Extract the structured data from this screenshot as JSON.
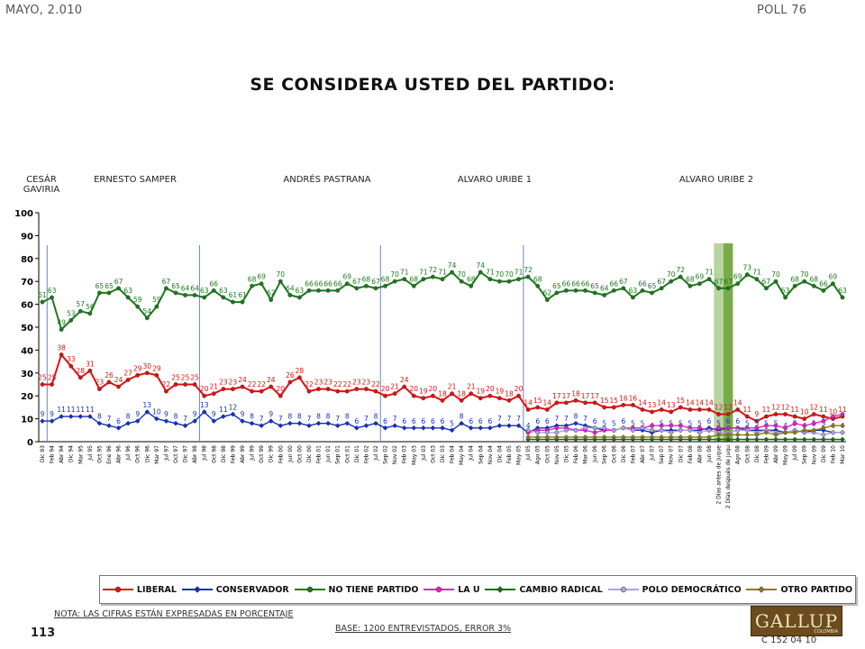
{
  "header": {
    "date": "MAYO, 2.010",
    "poll": "POLL 76"
  },
  "title": "SE CONSIDERA USTED DEL PARTIDO:",
  "eras": [
    {
      "label": "CESÁR GAVIRIA"
    },
    {
      "label": "ERNESTO SAMPER"
    },
    {
      "label": "ANDRÉS PASTRANA"
    },
    {
      "label": "ALVARO URIBE 1"
    },
    {
      "label": "ALVARO URIBE 2"
    }
  ],
  "footer": {
    "note": "NOTA: LAS CIFRAS ESTÁN EXPRESADAS EN PORCENTAJE",
    "base": "BASE: 1200 ENTREVISTADOS, ERROR 3%",
    "page": "113",
    "code": "C 152 04 10",
    "logo": "GALLUP",
    "logo_sub": "COLOMBIA"
  },
  "colors": {
    "liberal": "#e01010",
    "conservador": "#1030c0",
    "no_tiene": "#1a7a1a",
    "la_u": "#e020c8",
    "cambio": "#107010",
    "polo": "#b0a0e0",
    "otro": "#8a7a10",
    "highlight_light": "#b8d4a0",
    "highlight_dark": "#7aab4a"
  },
  "chart_data": {
    "type": "line",
    "title": "SE CONSIDERA USTED DEL PARTIDO:",
    "ylim": [
      0,
      100
    ],
    "yticks": [
      0,
      10,
      20,
      30,
      40,
      50,
      60,
      70,
      80,
      90,
      100
    ],
    "grid": false,
    "legend_position": "bottom",
    "categories": [
      "Dic 93",
      "Feb 94",
      "Abr 94",
      "Dic 94",
      "Mar 95",
      "Jul 95",
      "Oct 95",
      "Ene 96",
      "Abr 96",
      "Jul 96",
      "Oct 96",
      "Dic 96",
      "Mar 97",
      "Jul 97",
      "Oct 97",
      "Dic 97",
      "Abr 98",
      "Jul 98",
      "Oct 98",
      "Dic 98",
      "Feb 99",
      "Abr 99",
      "Jul 99",
      "Oct 99",
      "Dic 99",
      "Feb 00",
      "Jun 00",
      "Oct 00",
      "Dic 00",
      "Feb 01",
      "Jun 01",
      "Sep 01",
      "Oct 01",
      "Dic 01",
      "Feb 02",
      "Jul 02",
      "Sep 02",
      "Nov 02",
      "Feb 03",
      "May 03",
      "Jul 03",
      "Oct 03",
      "Dic 03",
      "Feb 04",
      "May 04",
      "Jul 04",
      "Sep 04",
      "Nov 04",
      "Dic 04",
      "Feb 05",
      "May 05",
      "Jul 05",
      "Ago 05",
      "Oct 05",
      "Nov 05",
      "Dic 05",
      "Feb 06",
      "Mar 06",
      "Jun 06",
      "Sep 06",
      "Oct 06",
      "Dic 06",
      "Feb 07",
      "Abr 07",
      "Jul 07",
      "Sep 07",
      "Nov 07",
      "Dic 07",
      "Feb 08",
      "Abr 08",
      "Jun 08",
      "2 Días antes de Juque Jun 27",
      "2 Días después de Juque Jul 01",
      "Ago 08",
      "Oct 08",
      "Dic 08",
      "Feb 09",
      "Abr 09",
      "May 09",
      "Jul 09",
      "Sep 09",
      "Nov 09",
      "Dic 09",
      "Feb 10",
      "Mar 10"
    ],
    "x_tick_labels": [
      "Dic 93",
      "Feb 94",
      "Abr 94",
      "Dic 94",
      "Mar 95",
      "Jul 95",
      "Oct 95",
      "Ene 96",
      "Abr 96",
      "Jul 96",
      "Oct 96",
      "Dic 96",
      "Mar 97",
      "Jul 97",
      "Oct 97",
      "Dic 97",
      "Abr 98",
      "Jul 98",
      "Oct 98",
      "Dic 98",
      "Feb 99",
      "Abr 99",
      "Jul 99",
      "Oct 99",
      "Dic 99",
      "Feb 00",
      "Jun 00",
      "Oct 00",
      "Dic 00",
      "Feb 01",
      "Jun 01",
      "Sep 01",
      "Oct 01",
      "Dic 01",
      "Feb 02",
      "Jul 02",
      "Sep 02",
      "Nov 02",
      "Feb 03",
      "May 03",
      "Jul 03",
      "Oct 03",
      "Dic 03",
      "Feb 04",
      "May 04",
      "Jul 04",
      "Sep 04",
      "Nov 04",
      "Dic 04",
      "Feb 05",
      "May 05",
      "Jul 05",
      "Ago 05",
      "Oct 05",
      "Nov 05",
      "Dic 05",
      "Feb 06",
      "Mar 06",
      "Jun 06",
      "Sep 06",
      "Oct 06",
      "Dic 06",
      "Feb 07",
      "Abr 07",
      "Jul 07",
      "Sep 07",
      "Nov 07",
      "Dic 07",
      "Feb 08",
      "Abr 08",
      "Jun 08",
      "2 Días antes de Juque Jun 27",
      "2 Días después de Juque Jul 01",
      "Ago 08",
      "Oct 08",
      "Dic 08",
      "Feb 09",
      "Abr 09",
      "May 09",
      "Jul 09",
      "Sep 09",
      "Nov 09",
      "Dic 09",
      "Feb 10",
      "Mar 10"
    ],
    "era_boundaries": [
      1,
      17,
      36,
      51
    ],
    "highlight_indices": [
      71,
      72
    ],
    "series": [
      {
        "name": "LIBERAL",
        "key": "liberal",
        "marker": "circle",
        "labeled": true,
        "values": [
          25,
          25,
          38,
          33,
          28,
          31,
          23,
          26,
          24,
          27,
          29,
          30,
          29,
          22,
          25,
          25,
          25,
          20,
          21,
          23,
          23,
          24,
          22,
          22,
          24,
          20,
          26,
          28,
          22,
          23,
          23,
          22,
          22,
          23,
          23,
          22,
          20,
          21,
          24,
          20,
          19,
          20,
          18,
          21,
          18,
          21,
          19,
          20,
          19,
          18,
          20,
          14,
          15,
          14,
          17,
          17,
          18,
          17,
          17,
          15,
          15,
          16,
          16,
          14,
          13,
          14,
          13,
          15,
          14,
          14,
          14,
          12,
          12,
          14,
          11,
          9,
          11,
          12,
          12,
          11,
          10,
          12,
          11,
          10,
          11
        ]
      },
      {
        "name": "CONSERVADOR",
        "key": "conservador",
        "marker": "diamond",
        "labeled": true,
        "values": [
          9,
          9,
          11,
          11,
          11,
          11,
          8,
          7,
          6,
          8,
          9,
          13,
          10,
          9,
          8,
          7,
          9,
          13,
          9,
          11,
          12,
          9,
          8,
          7,
          9,
          7,
          8,
          8,
          7,
          8,
          8,
          7,
          8,
          6,
          7,
          8,
          6,
          7,
          6,
          6,
          6,
          6,
          6,
          5,
          8,
          6,
          6,
          6,
          7,
          7,
          7,
          4,
          6,
          6,
          7,
          7,
          8,
          7,
          6,
          5,
          5,
          6,
          5,
          5,
          4,
          5,
          5,
          5,
          5,
          5,
          6,
          5,
          6,
          6,
          5,
          5,
          5,
          5,
          4,
          5,
          4,
          5,
          5,
          4,
          4
        ]
      },
      {
        "name": "NO TIENE PARTIDO",
        "key": "no_tiene",
        "marker": "circle",
        "labeled": true,
        "values": [
          61,
          63,
          49,
          53,
          57,
          56,
          65,
          65,
          67,
          63,
          59,
          54,
          59,
          67,
          65,
          64,
          64,
          63,
          66,
          63,
          61,
          61,
          68,
          69,
          62,
          70,
          64,
          63,
          66,
          66,
          66,
          66,
          69,
          67,
          68,
          67,
          68,
          70,
          71,
          68,
          71,
          72,
          71,
          74,
          70,
          68,
          74,
          71,
          70,
          70,
          71,
          72,
          68,
          62,
          65,
          66,
          66,
          66,
          65,
          64,
          66,
          67,
          63,
          66,
          65,
          67,
          70,
          72,
          68,
          69,
          71,
          67,
          67,
          69,
          73,
          71,
          67,
          70,
          63,
          68,
          70,
          68,
          66,
          69,
          63
        ]
      },
      {
        "name": "LA U",
        "key": "la_u",
        "marker": "circle",
        "labeled": false,
        "values": [
          null,
          null,
          null,
          null,
          null,
          null,
          null,
          null,
          null,
          null,
          null,
          null,
          null,
          null,
          null,
          null,
          null,
          null,
          null,
          null,
          null,
          null,
          null,
          null,
          null,
          null,
          null,
          null,
          null,
          null,
          null,
          null,
          null,
          null,
          null,
          null,
          null,
          null,
          null,
          null,
          null,
          null,
          null,
          null,
          null,
          null,
          null,
          null,
          null,
          null,
          null,
          4,
          5,
          5,
          6,
          6,
          5,
          5,
          4,
          5,
          5,
          6,
          6,
          6,
          7,
          7,
          7,
          7,
          6,
          6,
          5,
          6,
          6,
          6,
          6,
          6,
          7,
          7,
          6,
          8,
          7,
          8,
          9,
          11,
          12
        ]
      },
      {
        "name": "CAMBIO RADICAL",
        "key": "cambio",
        "marker": "diamond",
        "labeled": false,
        "values": [
          null,
          null,
          null,
          null,
          null,
          null,
          null,
          null,
          null,
          null,
          null,
          null,
          null,
          null,
          null,
          null,
          null,
          null,
          null,
          null,
          null,
          null,
          null,
          null,
          null,
          null,
          null,
          null,
          null,
          null,
          null,
          null,
          null,
          null,
          null,
          null,
          null,
          null,
          null,
          null,
          null,
          null,
          null,
          null,
          null,
          null,
          null,
          null,
          null,
          null,
          null,
          1,
          1,
          1,
          1,
          1,
          1,
          1,
          1,
          1,
          1,
          1,
          1,
          1,
          1,
          1,
          1,
          1,
          1,
          1,
          1,
          1,
          1,
          1,
          1,
          1,
          1,
          1,
          1,
          1,
          1,
          1,
          1,
          1,
          1
        ]
      },
      {
        "name": "POLO DEMOCRÁTICO",
        "key": "polo",
        "marker": "circle",
        "labeled": false,
        "values": [
          null,
          null,
          null,
          null,
          null,
          null,
          null,
          null,
          null,
          null,
          null,
          null,
          null,
          null,
          null,
          null,
          null,
          null,
          null,
          null,
          null,
          null,
          null,
          null,
          null,
          null,
          null,
          null,
          null,
          null,
          null,
          null,
          null,
          null,
          null,
          null,
          null,
          null,
          null,
          null,
          null,
          null,
          null,
          null,
          null,
          null,
          null,
          null,
          null,
          null,
          null,
          5,
          4,
          4,
          4,
          5,
          5,
          6,
          6,
          6,
          5,
          6,
          5,
          6,
          5,
          5,
          4,
          5,
          5,
          4,
          5,
          4,
          4,
          5,
          5,
          4,
          5,
          4,
          4,
          5,
          4,
          4,
          3,
          4,
          4
        ]
      },
      {
        "name": "OTRO PARTIDO",
        "key": "otro",
        "marker": "diamond",
        "labeled": false,
        "values": [
          null,
          null,
          null,
          null,
          null,
          null,
          null,
          null,
          null,
          null,
          null,
          null,
          null,
          null,
          null,
          null,
          null,
          null,
          null,
          null,
          null,
          null,
          null,
          null,
          null,
          null,
          null,
          null,
          null,
          null,
          null,
          null,
          null,
          null,
          null,
          null,
          null,
          null,
          null,
          null,
          null,
          null,
          null,
          null,
          null,
          null,
          null,
          null,
          null,
          null,
          null,
          2,
          2,
          2,
          2,
          2,
          2,
          2,
          2,
          2,
          2,
          2,
          2,
          2,
          2,
          2,
          2,
          2,
          2,
          2,
          2,
          3,
          3,
          3,
          3,
          3,
          4,
          3,
          4,
          4,
          5,
          5,
          6,
          7,
          7
        ]
      }
    ]
  }
}
